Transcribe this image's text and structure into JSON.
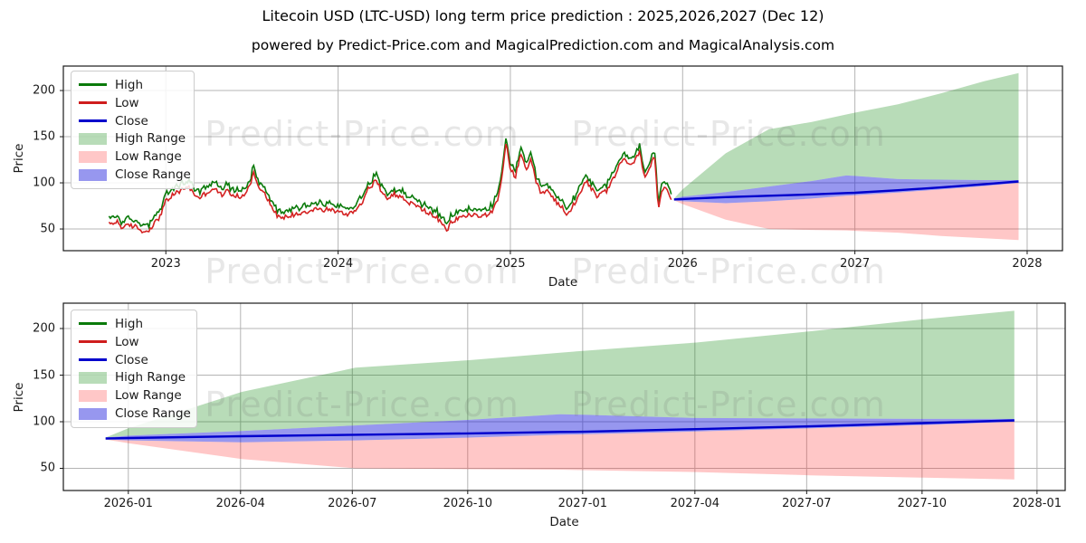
{
  "figure": {
    "title": "Litecoin USD (LTC-USD) long term price prediction : 2025,2026,2027 (Dec 12)",
    "subtitle": "powered by Predict-Price.com and MagicalPrediction.com and MagicalAnalysis.com",
    "watermark": "Predict-Price.com",
    "background": "#ffffff"
  },
  "legend": {
    "items": [
      {
        "label": "High",
        "type": "line",
        "color": "#0a7a0a"
      },
      {
        "label": "Low",
        "type": "line",
        "color": "#cf1d1d"
      },
      {
        "label": "Close",
        "type": "line",
        "color": "#0000cc"
      },
      {
        "label": "High Range",
        "type": "patch",
        "color": "rgba(0,128,0,0.28)"
      },
      {
        "label": "Low Range",
        "type": "patch",
        "color": "rgba(255,30,30,0.25)"
      },
      {
        "label": "Close Range",
        "type": "patch",
        "color": "rgba(25,25,220,0.45)"
      }
    ]
  },
  "colors": {
    "high_line": "#0a7a0a",
    "low_line": "#d42222",
    "close_line": "#0000cc",
    "high_range_fill": "rgba(0,128,0,0.28)",
    "low_range_fill": "rgba(255,30,30,0.25)",
    "close_range_fill": "rgba(25,25,220,0.45)",
    "grid": "#b4b4b4",
    "spine": "#1a1a1a"
  },
  "chart_data": [
    {
      "type": "line",
      "id": "main",
      "xlabel": "Date",
      "ylabel": "Price",
      "grid": true,
      "legend_position": "upper left",
      "xlim": [
        2022.405,
        2028.205
      ],
      "ylim": [
        26.5,
        226.5
      ],
      "x_ticks": [
        {
          "label": "2023",
          "t": 2023
        },
        {
          "label": "2024",
          "t": 2024
        },
        {
          "label": "2025",
          "t": 2025
        },
        {
          "label": "2026",
          "t": 2026
        },
        {
          "label": "2027",
          "t": 2027
        },
        {
          "label": "2028",
          "t": 2028
        }
      ],
      "y_ticks": [
        50,
        100,
        150,
        200
      ],
      "historical": {
        "series_names": [
          "High",
          "Low"
        ],
        "high_offset": 6,
        "low_anchors": [
          [
            2022.67,
            55
          ],
          [
            2022.72,
            58
          ],
          [
            2022.75,
            51
          ],
          [
            2022.79,
            54
          ],
          [
            2022.83,
            52
          ],
          [
            2022.88,
            46
          ],
          [
            2022.92,
            53
          ],
          [
            2022.96,
            62
          ],
          [
            2023.0,
            80
          ],
          [
            2023.05,
            88
          ],
          [
            2023.1,
            93
          ],
          [
            2023.13,
            97
          ],
          [
            2023.16,
            88
          ],
          [
            2023.2,
            84
          ],
          [
            2023.24,
            90
          ],
          [
            2023.28,
            94
          ],
          [
            2023.32,
            87
          ],
          [
            2023.36,
            91
          ],
          [
            2023.4,
            86
          ],
          [
            2023.44,
            84
          ],
          [
            2023.48,
            95
          ],
          [
            2023.51,
            110
          ],
          [
            2023.54,
            96
          ],
          [
            2023.57,
            90
          ],
          [
            2023.6,
            80
          ],
          [
            2023.63,
            68
          ],
          [
            2023.67,
            61
          ],
          [
            2023.71,
            64
          ],
          [
            2023.75,
            66
          ],
          [
            2023.79,
            68
          ],
          [
            2023.83,
            70
          ],
          [
            2023.87,
            72
          ],
          [
            2023.91,
            70
          ],
          [
            2023.95,
            72
          ],
          [
            2024.0,
            68
          ],
          [
            2024.05,
            66
          ],
          [
            2024.1,
            70
          ],
          [
            2024.14,
            80
          ],
          [
            2024.18,
            95
          ],
          [
            2024.22,
            102
          ],
          [
            2024.25,
            92
          ],
          [
            2024.28,
            84
          ],
          [
            2024.32,
            88
          ],
          [
            2024.36,
            85
          ],
          [
            2024.4,
            80
          ],
          [
            2024.44,
            76
          ],
          [
            2024.48,
            72
          ],
          [
            2024.52,
            68
          ],
          [
            2024.56,
            64
          ],
          [
            2024.6,
            56
          ],
          [
            2024.63,
            48
          ],
          [
            2024.66,
            58
          ],
          [
            2024.7,
            62
          ],
          [
            2024.74,
            64
          ],
          [
            2024.78,
            66
          ],
          [
            2024.82,
            63
          ],
          [
            2024.86,
            66
          ],
          [
            2024.9,
            70
          ],
          [
            2024.93,
            82
          ],
          [
            2024.96,
            118
          ],
          [
            2024.975,
            143
          ],
          [
            2025.0,
            116
          ],
          [
            2025.03,
            106
          ],
          [
            2025.06,
            133
          ],
          [
            2025.09,
            112
          ],
          [
            2025.12,
            124
          ],
          [
            2025.15,
            100
          ],
          [
            2025.18,
            88
          ],
          [
            2025.21,
            92
          ],
          [
            2025.25,
            82
          ],
          [
            2025.29,
            76
          ],
          [
            2025.33,
            64
          ],
          [
            2025.36,
            74
          ],
          [
            2025.4,
            88
          ],
          [
            2025.44,
            103
          ],
          [
            2025.47,
            94
          ],
          [
            2025.5,
            84
          ],
          [
            2025.53,
            88
          ],
          [
            2025.56,
            92
          ],
          [
            2025.6,
            104
          ],
          [
            2025.63,
            118
          ],
          [
            2025.66,
            128
          ],
          [
            2025.69,
            117
          ],
          [
            2025.72,
            124
          ],
          [
            2025.75,
            132
          ],
          [
            2025.78,
            108
          ],
          [
            2025.81,
            116
          ],
          [
            2025.835,
            131
          ],
          [
            2025.86,
            70
          ],
          [
            2025.88,
            90
          ],
          [
            2025.9,
            95
          ],
          [
            2025.92,
            85
          ],
          [
            2025.94,
            82
          ]
        ]
      },
      "prediction": {
        "t": [
          2025.95,
          2026.0,
          2026.25,
          2026.5,
          2026.75,
          2026.95,
          2027.0,
          2027.25,
          2027.5,
          2027.75,
          2027.95
        ],
        "high_range_top": [
          83,
          93,
          132,
          158,
          166,
          174,
          176,
          185,
          197,
          210,
          219
        ],
        "close_range_top": [
          83,
          85,
          90,
          96,
          102,
          108,
          107.5,
          104,
          103.5,
          103,
          103
        ],
        "close": [
          82,
          82.5,
          84.5,
          86,
          87.5,
          89,
          89.2,
          92,
          95,
          98.5,
          101.5
        ],
        "close_range_bottom": [
          81,
          80,
          78,
          80,
          83,
          86,
          86.5,
          89.5,
          93,
          96.5,
          100
        ],
        "low_range_bottom": [
          81,
          77,
          60,
          50,
          49,
          48.5,
          48,
          46,
          42.5,
          40,
          38
        ]
      }
    },
    {
      "type": "line",
      "id": "forecast",
      "xlabel": "Date",
      "ylabel": "Price",
      "grid": true,
      "legend_position": "upper left",
      "xlim": [
        2025.857,
        2028.062
      ],
      "ylim": [
        26.2,
        227.2
      ],
      "x_ticks": [
        {
          "label": "2026-01",
          "t": 2026.0
        },
        {
          "label": "2026-04",
          "t": 2026.247
        },
        {
          "label": "2026-07",
          "t": 2026.493
        },
        {
          "label": "2026-10",
          "t": 2026.747
        },
        {
          "label": "2027-01",
          "t": 2027.0
        },
        {
          "label": "2027-04",
          "t": 2027.247
        },
        {
          "label": "2027-07",
          "t": 2027.493
        },
        {
          "label": "2027-10",
          "t": 2027.747
        },
        {
          "label": "2028-01",
          "t": 2028.0
        }
      ],
      "y_ticks": [
        50,
        100,
        150,
        200
      ],
      "prediction": {
        "t": [
          2025.95,
          2026.0,
          2026.25,
          2026.5,
          2026.75,
          2026.95,
          2027.0,
          2027.25,
          2027.5,
          2027.75,
          2027.95
        ],
        "high_range_top": [
          83,
          93,
          132,
          158,
          166,
          174,
          176,
          185,
          197,
          210,
          219
        ],
        "close_range_top": [
          83,
          85,
          90,
          96,
          102,
          108,
          107.5,
          104,
          103.5,
          103,
          103
        ],
        "close": [
          82,
          82.5,
          84.5,
          86,
          87.5,
          89,
          89.2,
          92,
          95,
          98.5,
          101.5
        ],
        "close_range_bottom": [
          81,
          80,
          78,
          80,
          83,
          86,
          86.5,
          89.5,
          93,
          96.5,
          100
        ],
        "low_range_bottom": [
          81,
          77,
          60,
          50,
          49,
          48.5,
          48,
          46,
          42.5,
          40,
          38
        ]
      }
    }
  ]
}
